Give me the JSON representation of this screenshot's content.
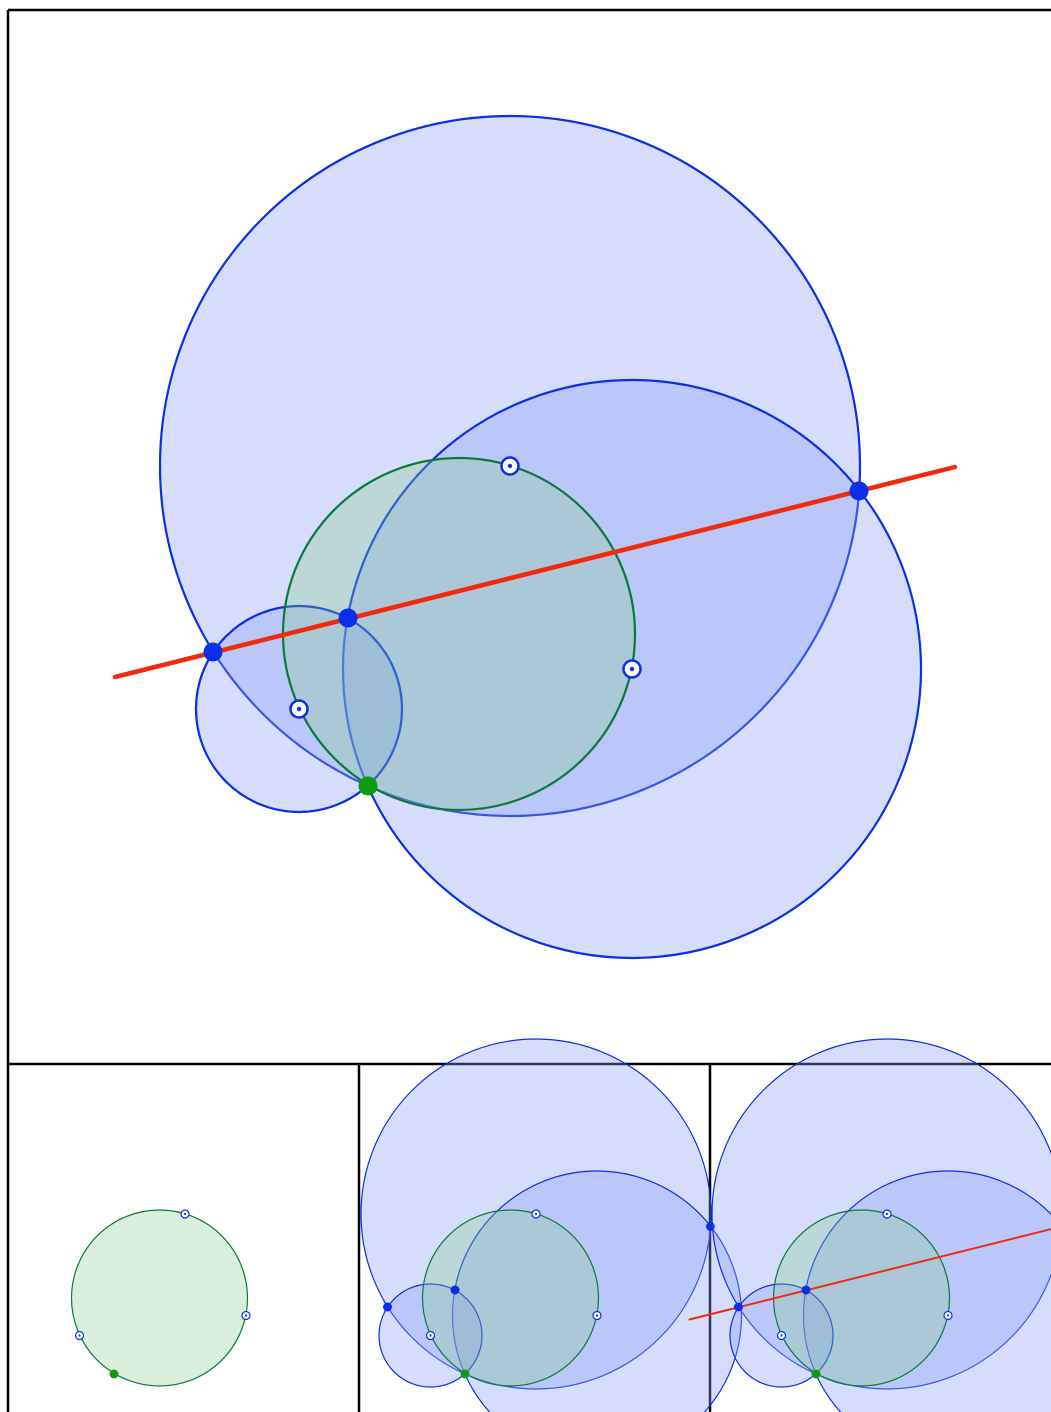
{
  "colors": {
    "blue_stroke": "#0a2fe6",
    "blue_fill": "#8a9ef5",
    "blue_fill_opacity": 0.35,
    "green_stroke": "#0a7a3c",
    "green_fill": "#8ac98f",
    "green_fill_opacity": 0.32,
    "green_point": "#109a10",
    "red_line": "#f02a0c",
    "frame": "#000000"
  },
  "panels": [
    {
      "name": "main-construction-panel",
      "stage": 3
    },
    {
      "name": "step-1-panel",
      "stage": 1
    },
    {
      "name": "step-2-panel",
      "stage": 2
    },
    {
      "name": "step-3-panel",
      "stage": 3
    }
  ]
}
